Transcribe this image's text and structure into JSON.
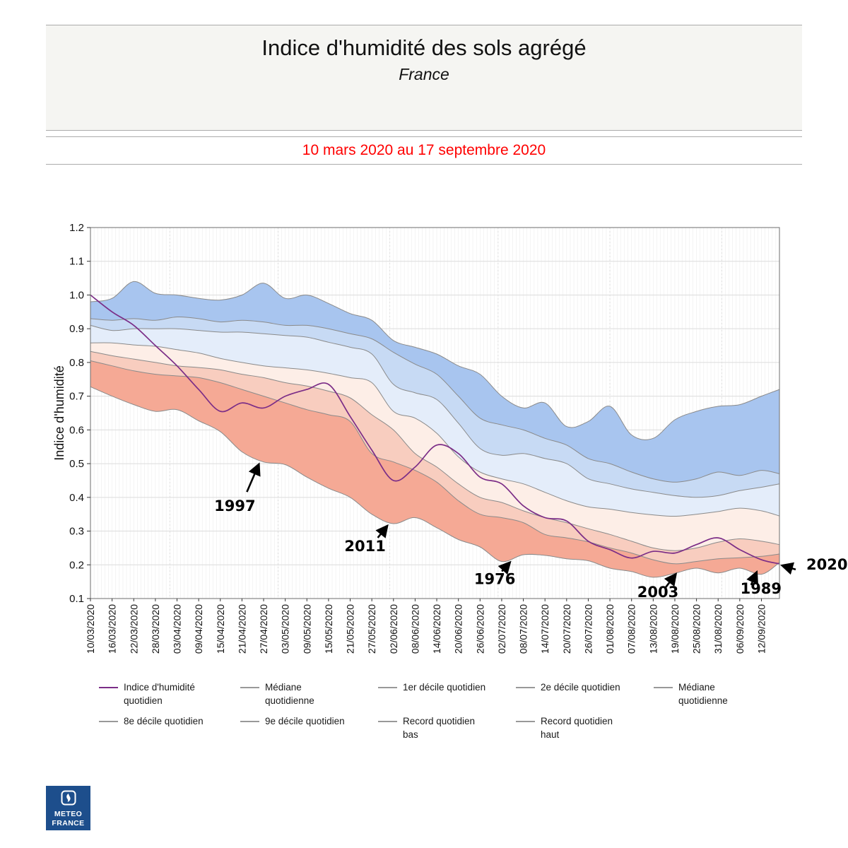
{
  "header": {
    "title": "Indice d'humidité des sols agrégé",
    "subtitle": "France",
    "period": "10 mars 2020 au 17 septembre 2020"
  },
  "logo": {
    "text": "METEO\nFRANCE",
    "bg_color": "#1d4e8c"
  },
  "chart_data": {
    "type": "area",
    "title": "Indice d'humidité des sols agrégé",
    "region": "France",
    "period": "10 mars 2020 au 17 septembre 2020",
    "ylabel": "Indice d'humidité",
    "ylim": [
      0.1,
      1.2
    ],
    "grid": true,
    "y_tick_labels": [
      "0.1",
      "0.2",
      "0.3",
      "0.4",
      "0.5",
      "0.6",
      "0.7",
      "0.8",
      "0.9",
      "1.0",
      "1.1",
      "1.2"
    ],
    "y_tick_values": [
      0.1,
      0.2,
      0.3,
      0.4,
      0.5,
      0.6,
      0.7,
      0.8,
      0.9,
      1.0,
      1.1,
      1.2
    ],
    "x_tick_labels": [
      "10/03/2020",
      "16/03/2020",
      "22/03/2020",
      "28/03/2020",
      "03/04/2020",
      "09/04/2020",
      "15/04/2020",
      "21/04/2020",
      "27/04/2020",
      "03/05/2020",
      "09/05/2020",
      "15/05/2020",
      "21/05/2020",
      "27/05/2020",
      "02/06/2020",
      "08/06/2020",
      "14/06/2020",
      "20/06/2020",
      "26/06/2020",
      "02/07/2020",
      "08/07/2020",
      "14/07/2020",
      "20/07/2020",
      "26/07/2020",
      "01/08/2020",
      "07/08/2020",
      "13/08/2020",
      "19/08/2020",
      "25/08/2020",
      "31/08/2020",
      "06/09/2020",
      "12/09/2020"
    ],
    "x_tick_days": [
      0,
      6,
      12,
      18,
      24,
      30,
      36,
      42,
      48,
      54,
      60,
      66,
      72,
      78,
      84,
      90,
      96,
      102,
      108,
      114,
      120,
      126,
      132,
      138,
      144,
      150,
      156,
      162,
      168,
      174,
      180,
      186
    ],
    "x_total_days": 191,
    "sample_days": [
      0,
      6,
      12,
      18,
      24,
      30,
      36,
      42,
      48,
      54,
      60,
      66,
      72,
      78,
      84,
      90,
      96,
      102,
      108,
      114,
      120,
      126,
      132,
      138,
      144,
      150,
      156,
      162,
      168,
      174,
      180,
      186,
      191
    ],
    "series": [
      {
        "name": "Record quotidien haut",
        "color": "#8a8a8a",
        "values": [
          0.98,
          0.99,
          1.04,
          1.005,
          1.0,
          0.99,
          0.985,
          1.0,
          1.035,
          0.99,
          1.0,
          0.975,
          0.945,
          0.925,
          0.865,
          0.845,
          0.825,
          0.79,
          0.765,
          0.7,
          0.665,
          0.68,
          0.61,
          0.625,
          0.67,
          0.585,
          0.575,
          0.63,
          0.655,
          0.67,
          0.675,
          0.7,
          0.72
        ]
      },
      {
        "name": "9e décile quotidien",
        "color": "#8a8a8a",
        "values": [
          0.93,
          0.925,
          0.93,
          0.925,
          0.935,
          0.93,
          0.92,
          0.925,
          0.92,
          0.91,
          0.91,
          0.9,
          0.885,
          0.87,
          0.83,
          0.795,
          0.765,
          0.7,
          0.635,
          0.615,
          0.6,
          0.575,
          0.555,
          0.515,
          0.5,
          0.475,
          0.455,
          0.445,
          0.455,
          0.475,
          0.465,
          0.48,
          0.47
        ]
      },
      {
        "name": "8e décile quotidien",
        "color": "#8a8a8a",
        "values": [
          0.91,
          0.895,
          0.9,
          0.9,
          0.9,
          0.895,
          0.89,
          0.89,
          0.885,
          0.88,
          0.875,
          0.86,
          0.845,
          0.825,
          0.735,
          0.71,
          0.69,
          0.62,
          0.545,
          0.525,
          0.53,
          0.515,
          0.5,
          0.455,
          0.44,
          0.425,
          0.415,
          0.405,
          0.4,
          0.405,
          0.42,
          0.43,
          0.44
        ]
      },
      {
        "name": "Médiane quotidienne",
        "color": "#8a8a8a",
        "values": [
          0.858,
          0.858,
          0.852,
          0.848,
          0.838,
          0.828,
          0.812,
          0.8,
          0.79,
          0.784,
          0.778,
          0.768,
          0.755,
          0.74,
          0.655,
          0.635,
          0.59,
          0.52,
          0.475,
          0.455,
          0.44,
          0.415,
          0.39,
          0.372,
          0.365,
          0.355,
          0.348,
          0.344,
          0.35,
          0.358,
          0.368,
          0.36,
          0.345
        ]
      },
      {
        "name": "2e décile quotidien",
        "color": "#8a8a8a",
        "values": [
          0.833,
          0.82,
          0.81,
          0.8,
          0.79,
          0.785,
          0.778,
          0.765,
          0.755,
          0.74,
          0.73,
          0.715,
          0.695,
          0.645,
          0.6,
          0.53,
          0.49,
          0.44,
          0.4,
          0.385,
          0.36,
          0.34,
          0.325,
          0.307,
          0.29,
          0.27,
          0.25,
          0.242,
          0.25,
          0.267,
          0.277,
          0.27,
          0.26
        ]
      },
      {
        "name": "1er décile quotidien",
        "color": "#8a8a8a",
        "values": [
          0.805,
          0.79,
          0.775,
          0.765,
          0.76,
          0.755,
          0.74,
          0.72,
          0.7,
          0.68,
          0.66,
          0.645,
          0.625,
          0.53,
          0.505,
          0.48,
          0.445,
          0.39,
          0.35,
          0.34,
          0.325,
          0.29,
          0.28,
          0.268,
          0.25,
          0.235,
          0.215,
          0.203,
          0.21,
          0.218,
          0.221,
          0.225,
          0.232
        ]
      },
      {
        "name": "Record quotidien bas",
        "color": "#8a8a8a",
        "values": [
          0.728,
          0.7,
          0.675,
          0.655,
          0.66,
          0.627,
          0.595,
          0.535,
          0.505,
          0.497,
          0.46,
          0.427,
          0.4,
          0.35,
          0.322,
          0.34,
          0.31,
          0.275,
          0.253,
          0.21,
          0.23,
          0.228,
          0.218,
          0.212,
          0.19,
          0.18,
          0.163,
          0.175,
          0.19,
          0.176,
          0.19,
          0.172,
          0.207
        ]
      },
      {
        "name": "Indice d'humidité quotidien",
        "color": "#7b2d87",
        "values": [
          1.0,
          0.95,
          0.91,
          0.85,
          0.79,
          0.72,
          0.655,
          0.68,
          0.665,
          0.7,
          0.72,
          0.735,
          0.64,
          0.54,
          0.45,
          0.49,
          0.555,
          0.53,
          0.46,
          0.44,
          0.375,
          0.34,
          0.33,
          0.27,
          0.245,
          0.22,
          0.24,
          0.235,
          0.26,
          0.28,
          0.245,
          0.215,
          0.203
        ]
      }
    ],
    "bands": [
      {
        "name": "record-haut-9e",
        "top": 0,
        "bottom": 1,
        "fill": "#a8c5ef"
      },
      {
        "name": "9e-8e",
        "top": 1,
        "bottom": 2,
        "fill": "#c7daf4"
      },
      {
        "name": "8e-mediane",
        "top": 2,
        "bottom": 3,
        "fill": "#e4edfa"
      },
      {
        "name": "mediane-2e",
        "top": 3,
        "bottom": 4,
        "fill": "#fdeee7"
      },
      {
        "name": "2e-1er",
        "top": 4,
        "bottom": 5,
        "fill": "#f8cdbf"
      },
      {
        "name": "1er-record-bas",
        "top": 5,
        "bottom": 6,
        "fill": "#f5a995"
      }
    ],
    "annotations": [
      {
        "label": "1997",
        "day": 46.5,
        "value": 0.5
      },
      {
        "label": "2011",
        "day": 82,
        "value": 0.318
      },
      {
        "label": "1976",
        "day": 116,
        "value": 0.21
      },
      {
        "label": "2003",
        "day": 162,
        "value": 0.175
      },
      {
        "label": "1989",
        "day": 184.5,
        "value": 0.18
      },
      {
        "label": "2020",
        "day": 191,
        "value": 0.203
      }
    ],
    "legend_position": "bottom"
  },
  "legend": {
    "rows": [
      [
        {
          "label": "Indice d'humidité\nquotidien",
          "color": "#7b2d87"
        },
        {
          "label": "Médiane\nquotidienne",
          "color": "#999999"
        },
        {
          "label": "1er décile quotidien",
          "color": "#999999"
        },
        {
          "label": "2e décile quotidien",
          "color": "#999999"
        },
        {
          "label": "Médiane\nquotidienne",
          "color": "#999999"
        }
      ],
      [
        {
          "label": "8e décile quotidien",
          "color": "#999999"
        },
        {
          "label": "9e décile quotidien",
          "color": "#999999"
        },
        {
          "label": "Record quotidien\nbas",
          "color": "#999999"
        },
        {
          "label": "Record quotidien\nhaut",
          "color": "#999999"
        }
      ]
    ]
  }
}
